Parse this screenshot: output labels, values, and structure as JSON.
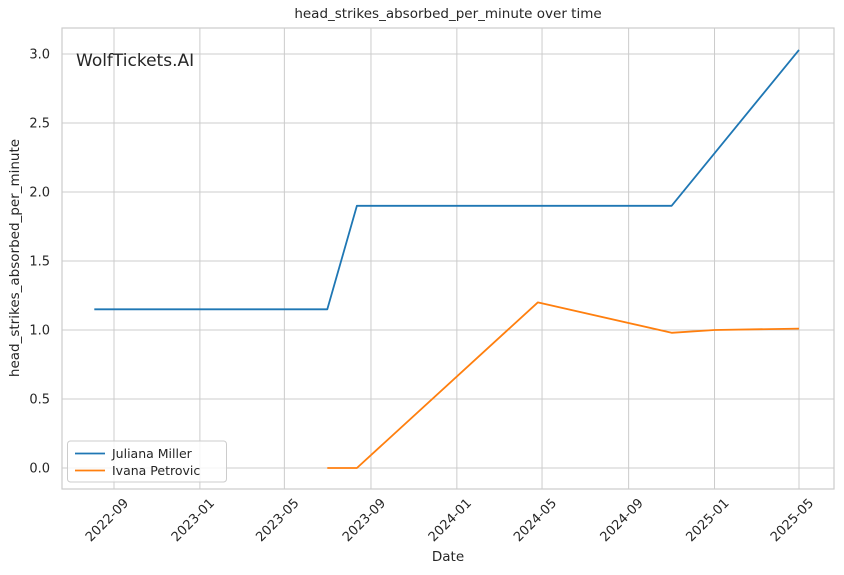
{
  "chart_data": {
    "type": "line",
    "title": "head_strikes_absorbed_per_minute over time",
    "xlabel": "Date",
    "ylabel": "head_strikes_absorbed_per_minute",
    "watermark": "WolfTickets.AI",
    "x_tick_labels": [
      "2022-09",
      "2023-01",
      "2023-05",
      "2023-09",
      "2024-01",
      "2024-05",
      "2024-09",
      "2025-01",
      "2025-05"
    ],
    "y_tick_labels": [
      "0.0",
      "0.5",
      "1.0",
      "1.5",
      "2.0",
      "2.5",
      "3.0"
    ],
    "ylim": [
      -0.15,
      3.19
    ],
    "xlim": [
      "2022-06-19",
      "2025-06-20"
    ],
    "grid": true,
    "legend_position": "lower-left",
    "colors": {
      "series_juliana_miller": "#1f77b4",
      "series_ivana_petrovic": "#ff7f0e",
      "grid": "#cccccc",
      "axes_edge": "#cccccc",
      "text": "#262626",
      "watermark": "#c9c9c9",
      "background": "#ffffff"
    },
    "series": [
      {
        "name": "Juliana Miller",
        "color": "#1f77b4",
        "points": [
          [
            "2022-08-04",
            1.15
          ],
          [
            "2023-07-01",
            1.15
          ],
          [
            "2023-08-12",
            1.9
          ],
          [
            "2024-11-01",
            1.9
          ],
          [
            "2025-05-01",
            3.03
          ]
        ]
      },
      {
        "name": "Ivana Petrovic",
        "color": "#ff7f0e",
        "points": [
          [
            "2023-07-01",
            0.0
          ],
          [
            "2023-08-12",
            0.0
          ],
          [
            "2024-04-25",
            1.2
          ],
          [
            "2024-11-01",
            0.98
          ],
          [
            "2025-01-01",
            1.0
          ],
          [
            "2025-05-01",
            1.01
          ]
        ]
      }
    ]
  }
}
